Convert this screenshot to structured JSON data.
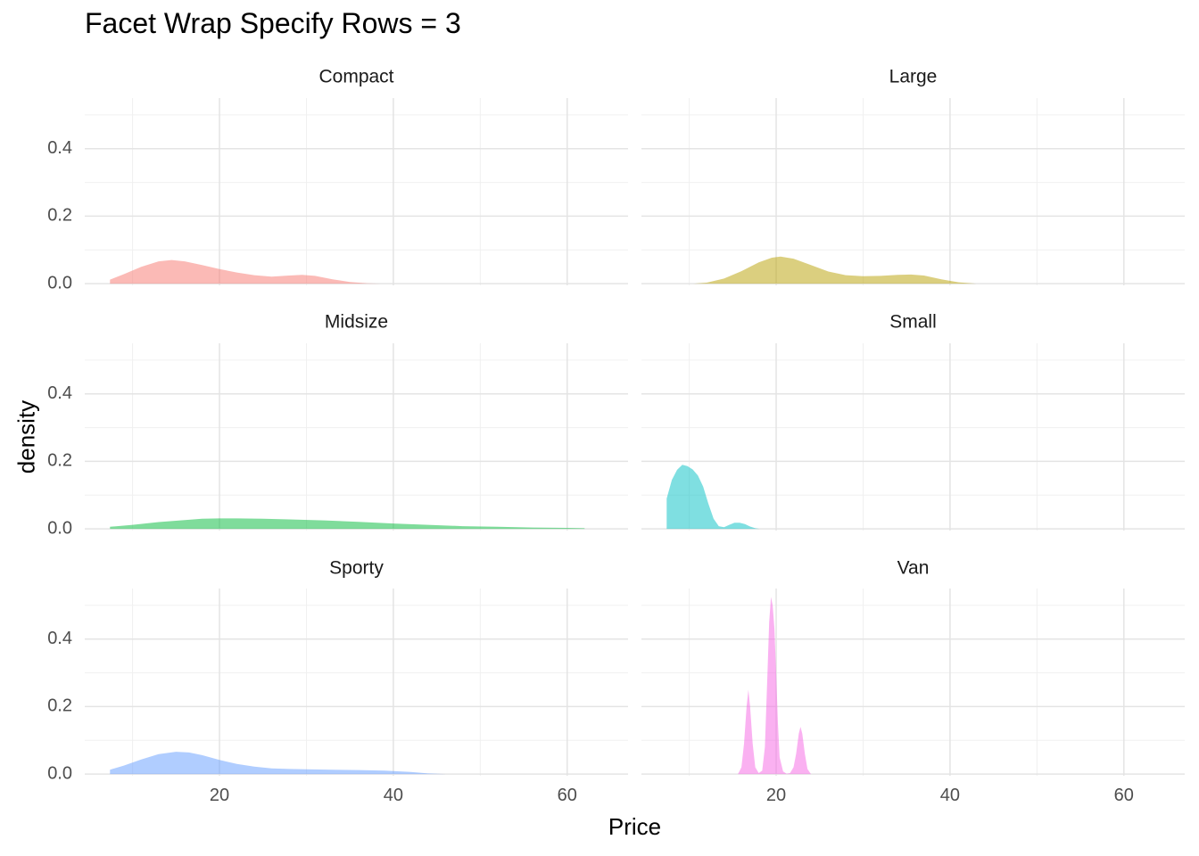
{
  "chart_data": {
    "type": "area",
    "title": "Facet Wrap Specify Rows = 3",
    "xlabel": "Price",
    "ylabel": "density",
    "xlim": [
      4.5,
      67
    ],
    "ylim": [
      -0.005,
      0.55
    ],
    "x_ticks": [
      20,
      40,
      60
    ],
    "y_ticks": [
      0.0,
      0.2,
      0.4
    ],
    "x_ticks_labels": [
      "20",
      "40",
      "60"
    ],
    "y_ticks_labels": [
      "0.0",
      "0.2",
      "0.4"
    ],
    "x_minor": [
      10,
      30,
      50
    ],
    "y_minor": [
      0.1,
      0.3,
      0.5
    ],
    "grid": true,
    "legend": "none",
    "facets": [
      {
        "name": "Compact",
        "color": "#F8766D",
        "x": [
          7.4,
          9,
          11,
          13,
          14.5,
          16,
          18,
          20,
          22,
          24,
          26,
          28,
          29.5,
          31,
          33,
          35,
          37,
          38.5
        ],
        "y": [
          0.012,
          0.028,
          0.05,
          0.066,
          0.07,
          0.066,
          0.055,
          0.043,
          0.033,
          0.025,
          0.021,
          0.024,
          0.026,
          0.023,
          0.013,
          0.005,
          0.001,
          0.0
        ]
      },
      {
        "name": "Large",
        "color": "#B79F00",
        "x": [
          10.5,
          12,
          14,
          16,
          18,
          19.5,
          20.5,
          22,
          24,
          26,
          28,
          30,
          32,
          34,
          35.5,
          37,
          39,
          41,
          43
        ],
        "y": [
          0.0,
          0.003,
          0.015,
          0.037,
          0.063,
          0.077,
          0.08,
          0.074,
          0.055,
          0.036,
          0.025,
          0.022,
          0.023,
          0.026,
          0.027,
          0.024,
          0.013,
          0.004,
          0.0
        ]
      },
      {
        "name": "Midsize",
        "color": "#00BA38",
        "x": [
          7.4,
          10,
          13,
          16,
          18,
          20,
          22,
          25,
          28,
          32,
          36,
          40,
          44,
          48,
          52,
          56,
          60,
          62
        ],
        "y": [
          0.006,
          0.012,
          0.02,
          0.026,
          0.03,
          0.031,
          0.031,
          0.03,
          0.028,
          0.025,
          0.021,
          0.016,
          0.012,
          0.008,
          0.006,
          0.004,
          0.003,
          0.002
        ]
      },
      {
        "name": "Small",
        "color": "#00BFC4",
        "x": [
          7.4,
          7.4,
          8,
          8.6,
          9.2,
          9.8,
          10.4,
          11,
          11.6,
          12.2,
          12.8,
          13.4,
          14,
          14.6,
          15.2,
          15.8,
          16.4,
          17,
          17.6,
          18.1
        ],
        "y": [
          0.0,
          0.09,
          0.145,
          0.175,
          0.19,
          0.186,
          0.176,
          0.158,
          0.125,
          0.075,
          0.03,
          0.008,
          0.005,
          0.012,
          0.018,
          0.018,
          0.014,
          0.007,
          0.002,
          0.0
        ]
      },
      {
        "name": "Sporty",
        "color": "#619CFF",
        "x": [
          7.4,
          9,
          11,
          13,
          15,
          16.5,
          18,
          20,
          22,
          24,
          26,
          28,
          30,
          33,
          36,
          39,
          42,
          44,
          46
        ],
        "y": [
          0.013,
          0.025,
          0.043,
          0.059,
          0.066,
          0.064,
          0.056,
          0.042,
          0.03,
          0.022,
          0.017,
          0.015,
          0.014,
          0.013,
          0.012,
          0.01,
          0.006,
          0.002,
          0.0
        ]
      },
      {
        "name": "Van",
        "color": "#F564E3",
        "x": [
          15.6,
          16,
          16.3,
          16.6,
          16.8,
          17.0,
          17.3,
          17.6,
          18.0,
          18.4,
          18.7,
          19.0,
          19.2,
          19.4,
          19.6,
          19.8,
          20.0,
          20.2,
          20.4,
          20.8,
          21.2,
          21.6,
          22.0,
          22.3,
          22.6,
          22.8,
          23.0,
          23.3,
          23.6,
          24.0
        ],
        "y": [
          0.0,
          0.02,
          0.09,
          0.2,
          0.25,
          0.2,
          0.09,
          0.02,
          0.003,
          0.01,
          0.08,
          0.3,
          0.45,
          0.525,
          0.5,
          0.43,
          0.3,
          0.15,
          0.05,
          0.008,
          0.001,
          0.003,
          0.02,
          0.06,
          0.12,
          0.14,
          0.12,
          0.06,
          0.015,
          0.0
        ]
      }
    ]
  }
}
